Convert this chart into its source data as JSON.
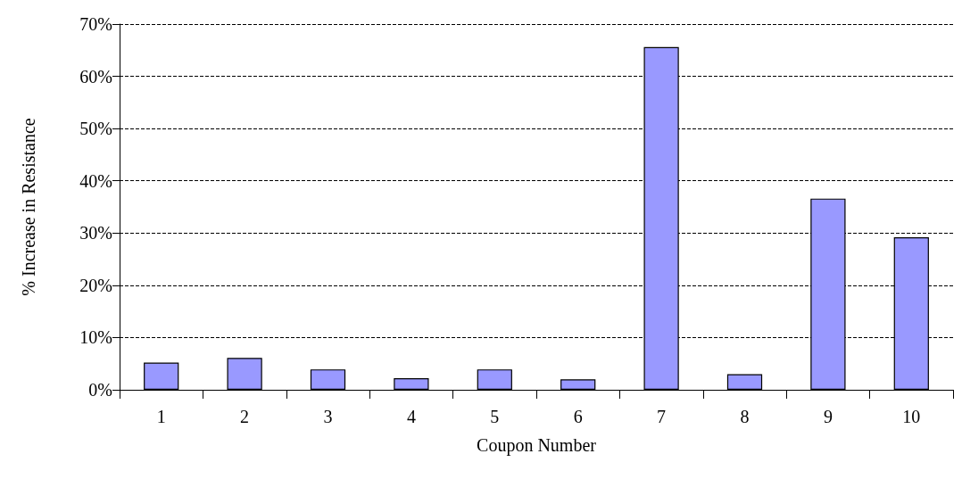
{
  "chart_data": {
    "type": "bar",
    "xlabel": "Coupon Number",
    "ylabel": "% Increase in Resistance",
    "categories": [
      "1",
      "2",
      "3",
      "4",
      "5",
      "6",
      "7",
      "8",
      "9",
      "10"
    ],
    "values": [
      5.2,
      6.1,
      3.9,
      2.2,
      3.9,
      2.0,
      65.6,
      3.0,
      36.6,
      29.2
    ],
    "color": "#9999ff",
    "ylim": [
      0,
      70
    ],
    "yticks": [
      {
        "value": 0,
        "label": "0%"
      },
      {
        "value": 10,
        "label": "10%"
      },
      {
        "value": 20,
        "label": "20%"
      },
      {
        "value": 30,
        "label": "30%"
      },
      {
        "value": 40,
        "label": "40%"
      },
      {
        "value": 50,
        "label": "50%"
      },
      {
        "value": 60,
        "label": "60%"
      },
      {
        "value": 70,
        "label": "70%"
      }
    ],
    "grid": "y"
  }
}
